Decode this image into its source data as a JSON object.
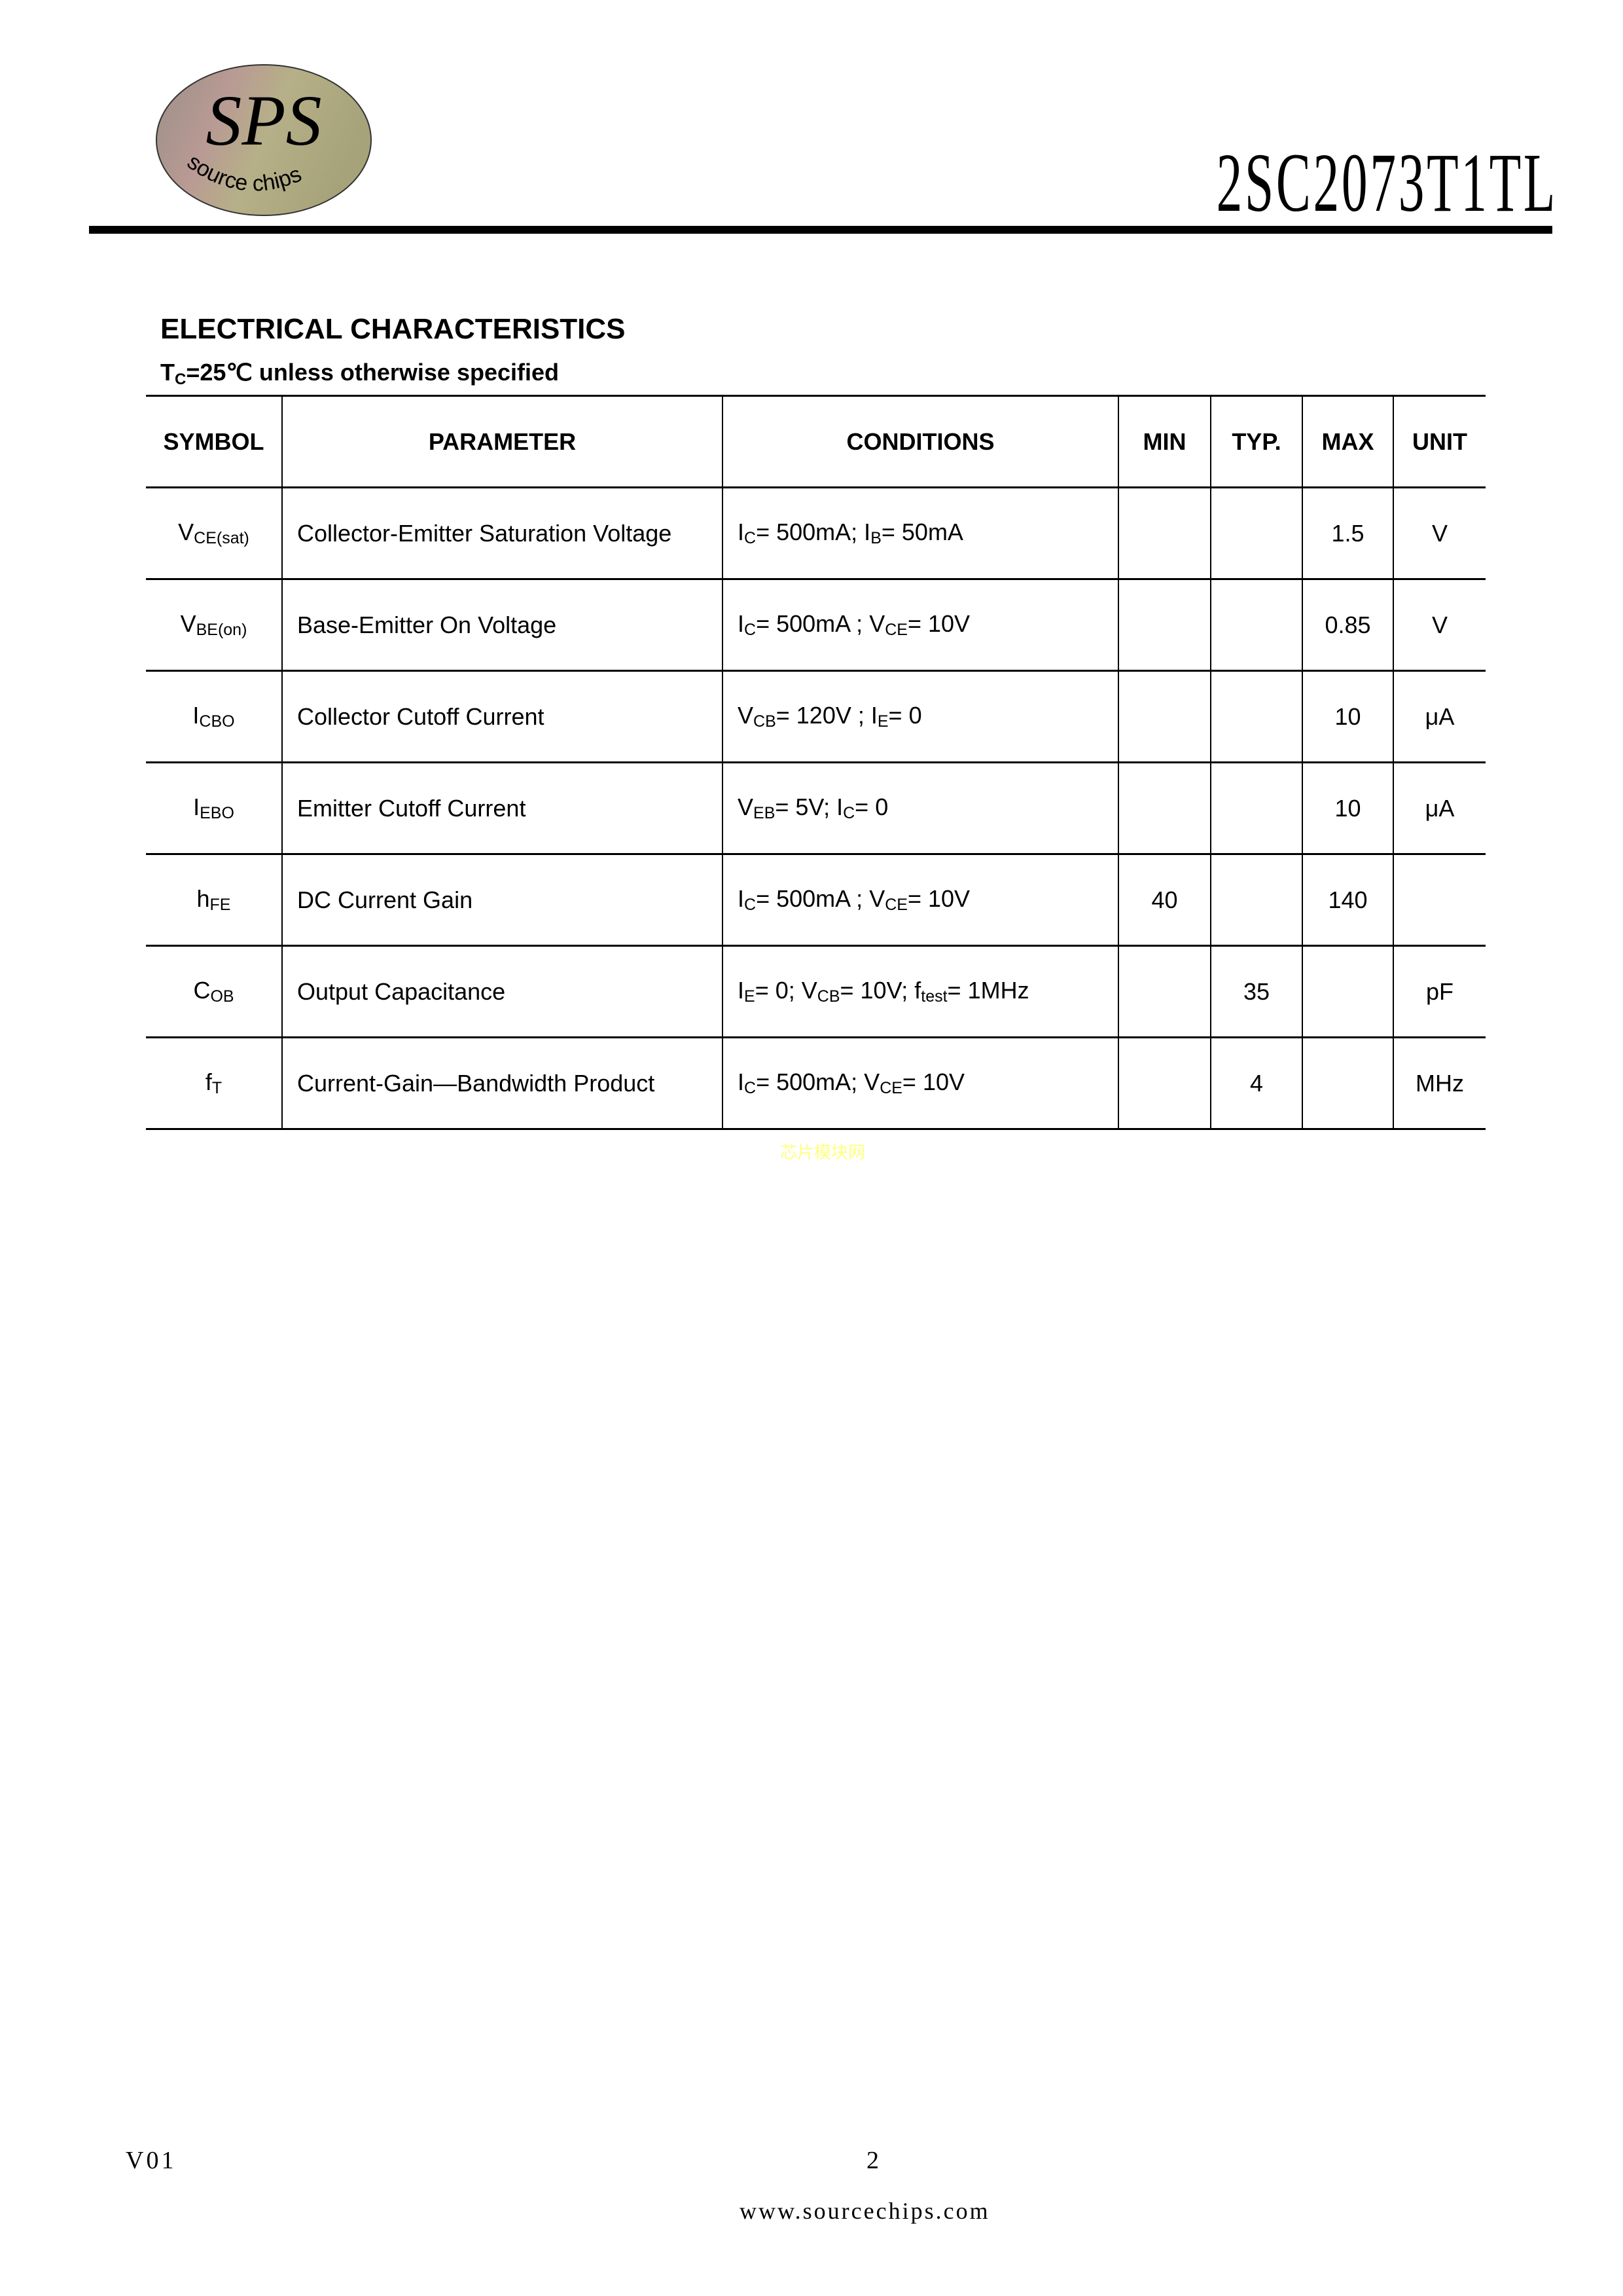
{
  "header": {
    "logo_text": "SPS",
    "logo_tagline": "source chips",
    "part_number": "2SC2073T1TL"
  },
  "section": {
    "title": "ELECTRICAL CHARACTERISTICS",
    "condition_prefix": "T",
    "condition_sub": "C",
    "condition_rest": "=25℃  unless otherwise specified"
  },
  "table": {
    "headers": [
      "SYMBOL",
      "PARAMETER",
      "CONDITIONS",
      "MIN",
      "TYP.",
      "MAX",
      "UNIT"
    ],
    "rows": [
      {
        "symbol": {
          "base": "V",
          "sub": "CE(sat)"
        },
        "parameter": "Collector-Emitter Saturation Voltage",
        "conditions": [
          {
            "t": "I"
          },
          {
            "s": "C"
          },
          {
            "t": "= 500mA; I"
          },
          {
            "s": "B"
          },
          {
            "t": "= 50mA"
          }
        ],
        "min": "",
        "typ": "",
        "max": "1.5",
        "unit": "V"
      },
      {
        "symbol": {
          "base": "V",
          "sub": "BE(on)"
        },
        "parameter": "Base-Emitter On Voltage",
        "conditions": [
          {
            "t": "I"
          },
          {
            "s": "C"
          },
          {
            "t": "= 500mA ; V"
          },
          {
            "s": "CE"
          },
          {
            "t": "= 10V"
          }
        ],
        "min": "",
        "typ": "",
        "max": "0.85",
        "unit": "V"
      },
      {
        "symbol": {
          "base": "I",
          "sub": "CBO"
        },
        "parameter": "Collector Cutoff Current",
        "conditions": [
          {
            "t": "V"
          },
          {
            "s": "CB"
          },
          {
            "t": "= 120V ; I"
          },
          {
            "s": "E"
          },
          {
            "t": "= 0"
          }
        ],
        "min": "",
        "typ": "",
        "max": "10",
        "unit": "μA"
      },
      {
        "symbol": {
          "base": "I",
          "sub": "EBO"
        },
        "parameter": "Emitter Cutoff Current",
        "conditions": [
          {
            "t": "V"
          },
          {
            "s": "EB"
          },
          {
            "t": "= 5V; I"
          },
          {
            "s": "C"
          },
          {
            "t": "= 0"
          }
        ],
        "min": "",
        "typ": "",
        "max": "10",
        "unit": "μA"
      },
      {
        "symbol": {
          "base": "h",
          "sub": "FE"
        },
        "parameter": "DC Current Gain",
        "conditions": [
          {
            "t": "I"
          },
          {
            "s": "C"
          },
          {
            "t": "= 500mA ; V"
          },
          {
            "s": "CE"
          },
          {
            "t": "= 10V"
          }
        ],
        "min": "40",
        "typ": "",
        "max": "140",
        "unit": ""
      },
      {
        "symbol": {
          "base": "C",
          "sub": "OB"
        },
        "parameter": "Output Capacitance",
        "conditions": [
          {
            "t": "I"
          },
          {
            "s": "E"
          },
          {
            "t": "= 0; V"
          },
          {
            "s": "CB"
          },
          {
            "t": "= 10V; f"
          },
          {
            "s": "test"
          },
          {
            "t": "= 1MHz"
          }
        ],
        "min": "",
        "typ": "35",
        "max": "",
        "unit": "pF"
      },
      {
        "symbol": {
          "base": "f",
          "sub": "T"
        },
        "parameter": "Current-Gain—Bandwidth Product",
        "conditions": [
          {
            "t": "I"
          },
          {
            "s": "C"
          },
          {
            "t": "= 500mA; V"
          },
          {
            "s": "CE"
          },
          {
            "t": "= 10V"
          }
        ],
        "min": "",
        "typ": "4",
        "max": "",
        "unit": "MHz"
      }
    ]
  },
  "watermark": "芯片模块网",
  "footer": {
    "version": "V01",
    "page": "2",
    "website": "www.sourcechips.com"
  }
}
